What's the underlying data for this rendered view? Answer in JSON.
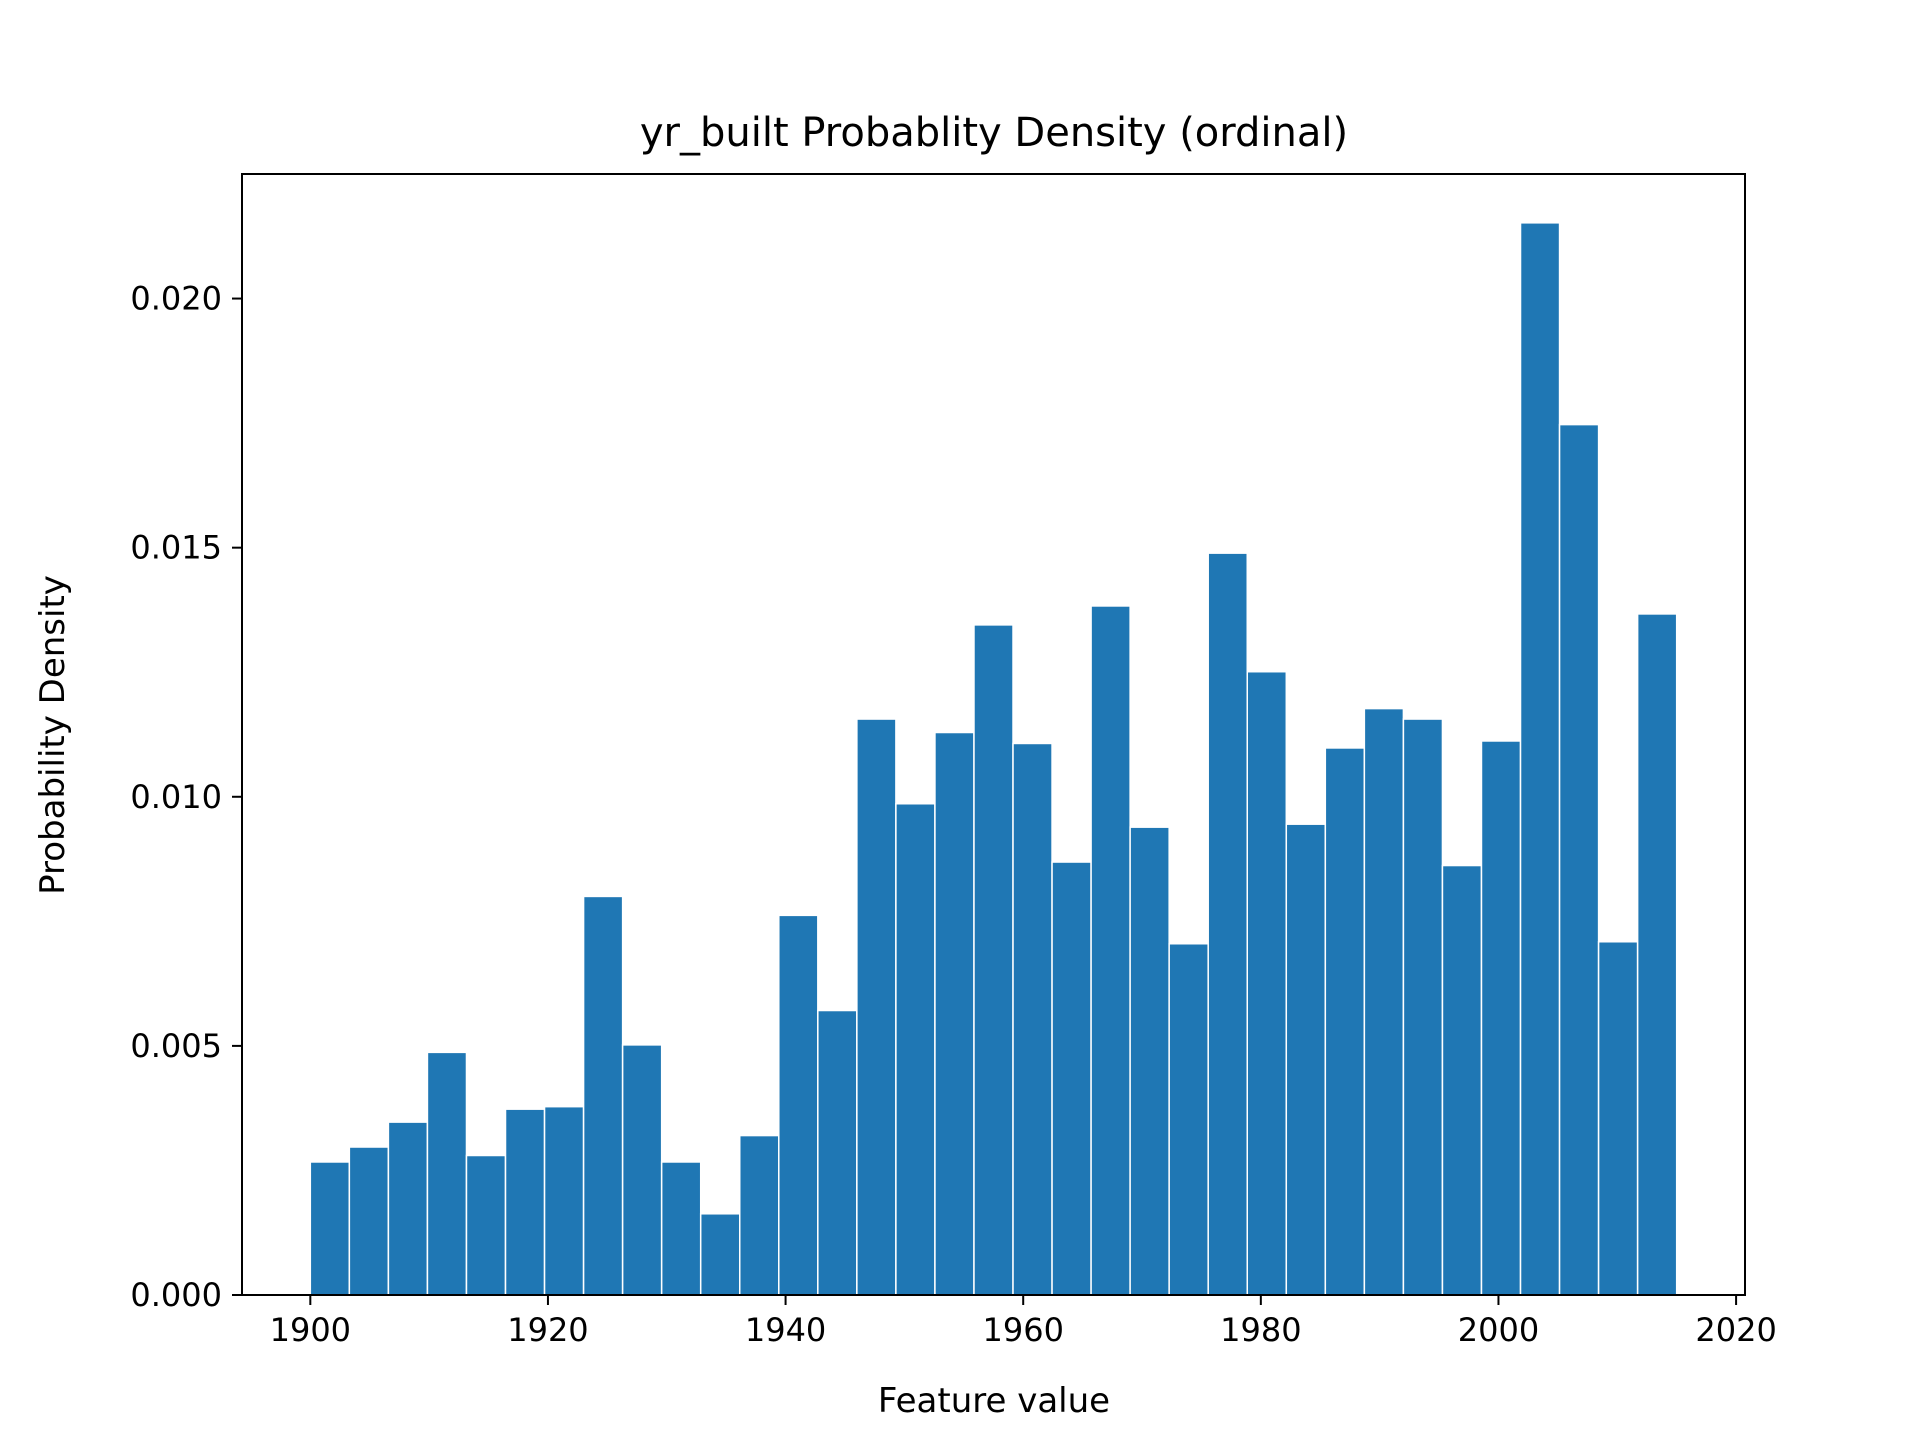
{
  "chart_data": {
    "type": "bar",
    "title": "yr_built Probablity Density (ordinal)",
    "xlabel": "Feature value",
    "ylabel": "Probability Density",
    "xlim": [
      1894.25,
      2020.75
    ],
    "ylim": [
      0,
      0.0225
    ],
    "xticks": [
      1900,
      1920,
      1940,
      1960,
      1980,
      2000,
      2020
    ],
    "xtick_labels": [
      "1900",
      "1920",
      "1940",
      "1960",
      "1980",
      "2000",
      "2020"
    ],
    "yticks": [
      0,
      0.005,
      0.01,
      0.015,
      0.02
    ],
    "ytick_labels": [
      "0.000",
      "0.005",
      "0.010",
      "0.015",
      "0.020"
    ],
    "bin_start": 1900,
    "bin_width": 3.2857,
    "values": [
      0.00267,
      0.00297,
      0.00347,
      0.00487,
      0.0028,
      0.00373,
      0.00378,
      0.008,
      0.00502,
      0.00267,
      0.00163,
      0.0032,
      0.00762,
      0.00571,
      0.01156,
      0.00986,
      0.01129,
      0.01345,
      0.01107,
      0.00869,
      0.01383,
      0.00939,
      0.00705,
      0.01489,
      0.01251,
      0.00945,
      0.01098,
      0.01177,
      0.01156,
      0.00862,
      0.01112,
      0.02152,
      0.01747,
      0.00709,
      0.01367
    ],
    "color": "#1f77b4",
    "grid": false
  }
}
